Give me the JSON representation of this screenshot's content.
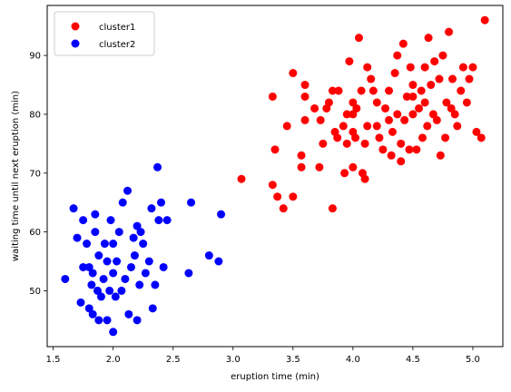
{
  "chart_data": {
    "type": "scatter",
    "xlabel": "eruption time (min)",
    "ylabel": "waiting time until next eruption (min)",
    "xlim": [
      1.45,
      5.25
    ],
    "ylim": [
      40.5,
      98.5
    ],
    "xticks": [
      "1.5",
      "2.0",
      "2.5",
      "3.0",
      "3.5",
      "4.0",
      "4.5",
      "5.0"
    ],
    "yticks": [
      "50",
      "60",
      "70",
      "80",
      "90"
    ],
    "grid": false,
    "legend_position": "top-left",
    "series": [
      {
        "name": "cluster1",
        "color": "#ff0000",
        "points": [
          [
            3.07,
            69
          ],
          [
            3.33,
            83
          ],
          [
            3.35,
            74
          ],
          [
            3.33,
            68
          ],
          [
            3.37,
            66
          ],
          [
            3.42,
            64
          ],
          [
            3.45,
            78
          ],
          [
            3.5,
            66
          ],
          [
            3.5,
            87
          ],
          [
            3.57,
            73
          ],
          [
            3.57,
            71
          ],
          [
            3.6,
            85
          ],
          [
            3.6,
            83
          ],
          [
            3.6,
            79
          ],
          [
            3.68,
            81
          ],
          [
            3.72,
            71
          ],
          [
            3.73,
            79
          ],
          [
            3.75,
            75
          ],
          [
            3.78,
            81
          ],
          [
            3.8,
            82
          ],
          [
            3.83,
            64
          ],
          [
            3.83,
            84
          ],
          [
            3.85,
            77
          ],
          [
            3.87,
            76
          ],
          [
            3.88,
            84
          ],
          [
            3.92,
            78
          ],
          [
            3.93,
            70
          ],
          [
            3.95,
            75
          ],
          [
            3.95,
            80
          ],
          [
            3.97,
            89
          ],
          [
            4.0,
            82
          ],
          [
            4.0,
            80
          ],
          [
            4.0,
            77
          ],
          [
            4.0,
            71
          ],
          [
            4.02,
            76
          ],
          [
            4.03,
            81
          ],
          [
            4.05,
            93
          ],
          [
            4.07,
            84
          ],
          [
            4.08,
            70
          ],
          [
            4.1,
            69
          ],
          [
            4.1,
            75
          ],
          [
            4.12,
            78
          ],
          [
            4.12,
            88
          ],
          [
            4.15,
            86
          ],
          [
            4.17,
            84
          ],
          [
            4.2,
            82
          ],
          [
            4.2,
            78
          ],
          [
            4.22,
            76
          ],
          [
            4.25,
            74
          ],
          [
            4.27,
            81
          ],
          [
            4.3,
            84
          ],
          [
            4.3,
            79
          ],
          [
            4.32,
            73
          ],
          [
            4.33,
            77
          ],
          [
            4.35,
            87
          ],
          [
            4.37,
            90
          ],
          [
            4.37,
            80
          ],
          [
            4.4,
            72
          ],
          [
            4.4,
            75
          ],
          [
            4.42,
            92
          ],
          [
            4.43,
            79
          ],
          [
            4.45,
            83
          ],
          [
            4.47,
            74
          ],
          [
            4.48,
            88
          ],
          [
            4.5,
            83
          ],
          [
            4.5,
            80
          ],
          [
            4.5,
            85
          ],
          [
            4.53,
            74
          ],
          [
            4.55,
            81
          ],
          [
            4.57,
            84
          ],
          [
            4.58,
            76
          ],
          [
            4.6,
            88
          ],
          [
            4.6,
            82
          ],
          [
            4.62,
            78
          ],
          [
            4.63,
            93
          ],
          [
            4.65,
            85
          ],
          [
            4.67,
            80
          ],
          [
            4.68,
            89
          ],
          [
            4.7,
            79
          ],
          [
            4.72,
            86
          ],
          [
            4.73,
            73
          ],
          [
            4.75,
            90
          ],
          [
            4.77,
            76
          ],
          [
            4.78,
            82
          ],
          [
            4.8,
            94
          ],
          [
            4.82,
            81
          ],
          [
            4.83,
            86
          ],
          [
            4.85,
            80
          ],
          [
            4.87,
            78
          ],
          [
            4.9,
            84
          ],
          [
            4.92,
            88
          ],
          [
            4.95,
            82
          ],
          [
            4.97,
            86
          ],
          [
            5.0,
            88
          ],
          [
            5.03,
            77
          ],
          [
            5.07,
            76
          ],
          [
            5.1,
            96
          ]
        ]
      },
      {
        "name": "cluster2",
        "color": "#0000ff",
        "points": [
          [
            1.6,
            52
          ],
          [
            1.67,
            64
          ],
          [
            1.7,
            59
          ],
          [
            1.73,
            48
          ],
          [
            1.75,
            54
          ],
          [
            1.75,
            62
          ],
          [
            1.78,
            58
          ],
          [
            1.8,
            47
          ],
          [
            1.8,
            54
          ],
          [
            1.82,
            51
          ],
          [
            1.83,
            46
          ],
          [
            1.83,
            53
          ],
          [
            1.85,
            60
          ],
          [
            1.85,
            63
          ],
          [
            1.87,
            50
          ],
          [
            1.88,
            45
          ],
          [
            1.88,
            56
          ],
          [
            1.9,
            49
          ],
          [
            1.92,
            52
          ],
          [
            1.93,
            58
          ],
          [
            1.95,
            45
          ],
          [
            1.95,
            55
          ],
          [
            1.97,
            50
          ],
          [
            1.98,
            62
          ],
          [
            2.0,
            43
          ],
          [
            2.0,
            53
          ],
          [
            2.0,
            58
          ],
          [
            2.02,
            49
          ],
          [
            2.03,
            55
          ],
          [
            2.05,
            60
          ],
          [
            2.07,
            50
          ],
          [
            2.08,
            65
          ],
          [
            2.1,
            52
          ],
          [
            2.12,
            67
          ],
          [
            2.13,
            46
          ],
          [
            2.15,
            54
          ],
          [
            2.17,
            59
          ],
          [
            2.18,
            56
          ],
          [
            2.2,
            45
          ],
          [
            2.2,
            61
          ],
          [
            2.22,
            51
          ],
          [
            2.23,
            60
          ],
          [
            2.25,
            58
          ],
          [
            2.27,
            53
          ],
          [
            2.3,
            55
          ],
          [
            2.32,
            64
          ],
          [
            2.33,
            47
          ],
          [
            2.35,
            51
          ],
          [
            2.37,
            71
          ],
          [
            2.38,
            62
          ],
          [
            2.4,
            65
          ],
          [
            2.42,
            54
          ],
          [
            2.45,
            62
          ],
          [
            2.63,
            53
          ],
          [
            2.65,
            65
          ],
          [
            2.8,
            56
          ],
          [
            2.88,
            55
          ],
          [
            2.9,
            63
          ]
        ]
      }
    ]
  }
}
